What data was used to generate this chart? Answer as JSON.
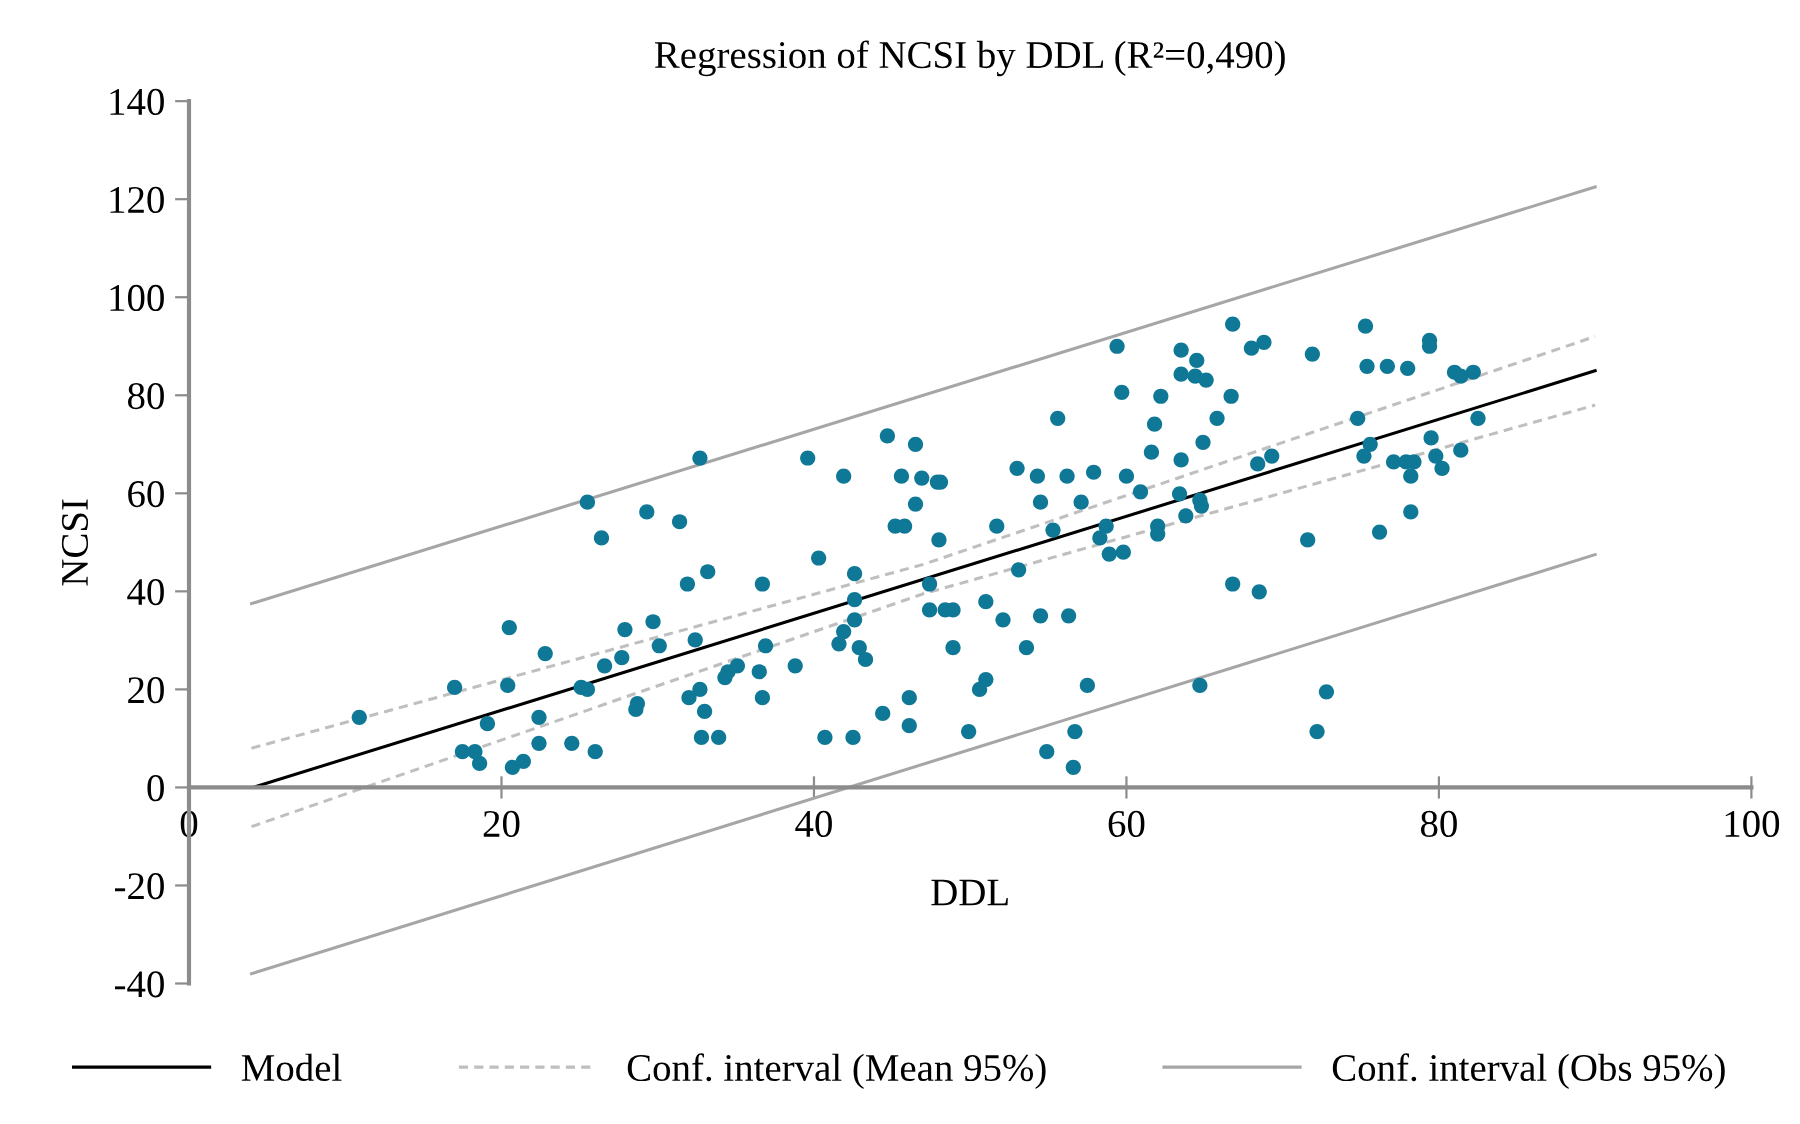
{
  "chart_data": {
    "type": "scatter",
    "title": "Regression of NCSI by DDL (R²=0,490)",
    "xlabel": "DDL",
    "ylabel": "NCSI",
    "xlim": [
      0,
      100
    ],
    "ylim": [
      -40,
      140
    ],
    "xticks": [
      0,
      20,
      40,
      60,
      80,
      100
    ],
    "yticks": [
      -40,
      -20,
      0,
      20,
      40,
      60,
      80,
      100,
      120,
      140
    ],
    "grid": false,
    "legend": "bottom",
    "series": [
      {
        "marker": "circle",
        "color": "#0f7896",
        "x": [
          10.9,
          17.0,
          17.5,
          18.3,
          18.6,
          19.1,
          20.4,
          20.5,
          20.7,
          21.4,
          22.4,
          22.4,
          22.8,
          24.5,
          25.1,
          25.5,
          25.5,
          26.0,
          26.4,
          26.6,
          27.7,
          27.9,
          28.6,
          28.7,
          29.3,
          29.7,
          30.1,
          31.4,
          31.9,
          32.0,
          32.4,
          32.7,
          32.7,
          32.8,
          33.2,
          33.0,
          33.9,
          34.3,
          34.5,
          35.1,
          36.5,
          36.7,
          36.7,
          36.9,
          38.8,
          39.6,
          40.3,
          40.7,
          41.6,
          41.9,
          41.9,
          42.5,
          42.6,
          42.6,
          42.6,
          42.9,
          43.3,
          44.4,
          44.7,
          45.2,
          45.6,
          45.8,
          46.1,
          46.1,
          46.5,
          46.5,
          46.9,
          47.4,
          47.4,
          47.9,
          48.1,
          48.0,
          48.4,
          48.9,
          48.9,
          49.9,
          50.6,
          51.0,
          51.0,
          51.7,
          52.1,
          53.0,
          53.1,
          53.6,
          54.3,
          54.5,
          54.5,
          54.9,
          55.3,
          55.6,
          56.2,
          56.3,
          56.6,
          56.7,
          57.1,
          57.5,
          57.9,
          58.3,
          58.7,
          58.9,
          59.4,
          59.7,
          59.8,
          60.0,
          60.9,
          61.6,
          61.8,
          62.0,
          62.0,
          62.2,
          63.4,
          63.5,
          63.5,
          63.5,
          63.8,
          64.4,
          64.5,
          64.7,
          64.7,
          64.8,
          64.9,
          65.1,
          65.8,
          66.8,
          66.8,
          66.7,
          68.0,
          68.4,
          68.5,
          68.8,
          69.3,
          71.6,
          71.9,
          72.2,
          72.8,
          74.8,
          75.2,
          75.3,
          75.4,
          75.6,
          76.2,
          76.7,
          77.1,
          77.9,
          78.0,
          78.2,
          78.2,
          78.4,
          79.4,
          79.4,
          79.5,
          79.8,
          80.2,
          81.0,
          81.4,
          81.4,
          82.2,
          82.5
        ],
        "values": [
          14.3,
          20.4,
          7.3,
          7.3,
          4.9,
          13.0,
          20.8,
          32.6,
          4.1,
          5.3,
          9.0,
          14.3,
          27.3,
          9.0,
          20.4,
          20.0,
          58.2,
          7.3,
          50.9,
          24.8,
          26.5,
          32.2,
          15.9,
          17.1,
          56.2,
          33.8,
          28.9,
          54.2,
          41.5,
          18.3,
          30.1,
          20.0,
          67.2,
          10.2,
          44.0,
          15.5,
          10.2,
          22.4,
          23.6,
          24.8,
          23.6,
          41.5,
          18.3,
          28.9,
          24.8,
          67.2,
          46.8,
          10.2,
          29.3,
          31.8,
          63.5,
          10.2,
          34.2,
          38.3,
          43.6,
          28.5,
          26.1,
          15.1,
          71.7,
          53.3,
          63.5,
          53.3,
          18.3,
          12.6,
          70.0,
          57.8,
          63.1,
          41.5,
          36.2,
          62.3,
          62.3,
          50.5,
          36.2,
          36.2,
          28.5,
          11.4,
          20.0,
          22.0,
          37.9,
          53.3,
          34.2,
          65.1,
          44.4,
          28.5,
          63.5,
          58.2,
          35.0,
          7.3,
          52.5,
          75.3,
          63.5,
          35.0,
          4.1,
          11.4,
          58.2,
          20.8,
          64.3,
          50.9,
          53.3,
          47.6,
          90.0,
          80.6,
          48.0,
          63.5,
          60.3,
          68.4,
          74.1,
          53.3,
          51.7,
          79.8,
          59.9,
          89.2,
          84.3,
          66.8,
          55.4,
          83.9,
          87.1,
          58.6,
          20.8,
          57.4,
          70.4,
          83.1,
          75.3,
          94.5,
          41.5,
          79.8,
          89.6,
          66.0,
          39.9,
          90.8,
          67.6,
          50.5,
          88.4,
          11.4,
          19.5,
          75.3,
          67.6,
          94.1,
          85.9,
          70.0,
          52.1,
          85.9,
          66.4,
          66.4,
          85.5,
          63.5,
          56.2,
          66.4,
          91.2,
          90.0,
          71.3,
          67.6,
          65.1,
          84.7,
          68.8,
          83.9,
          84.7,
          75.3
        ]
      },
      {
        "type": "line",
        "name": "Model",
        "color": "#000000",
        "line_style": "solid",
        "marker": "none",
        "x": [
          4.1,
          90
        ],
        "values": [
          0,
          85
        ]
      },
      {
        "type": "line",
        "name": "Conf. interval (Mean 95%)",
        "color": "#bfbfbf",
        "line_style": "dashed",
        "marker": "none",
        "x": [
          4,
          47,
          90
        ],
        "values": [
          8,
          45.5,
          92
        ]
      },
      {
        "type": "line",
        "color": "#bfbfbf",
        "line_style": "dashed",
        "marker": "none",
        "x": [
          4,
          47,
          90
        ],
        "values": [
          -8,
          39.5,
          78
        ]
      },
      {
        "type": "line",
        "name": "Conf. interval (Obs 95%)",
        "color": "#a6a6a6",
        "line_style": "solid",
        "marker": "none",
        "x": [
          4,
          90
        ],
        "values": [
          37.5,
          122.5
        ]
      },
      {
        "type": "line",
        "color": "#a6a6a6",
        "line_style": "solid",
        "marker": "none",
        "x": [
          4,
          90
        ],
        "values": [
          -38,
          47.5
        ]
      }
    ]
  }
}
